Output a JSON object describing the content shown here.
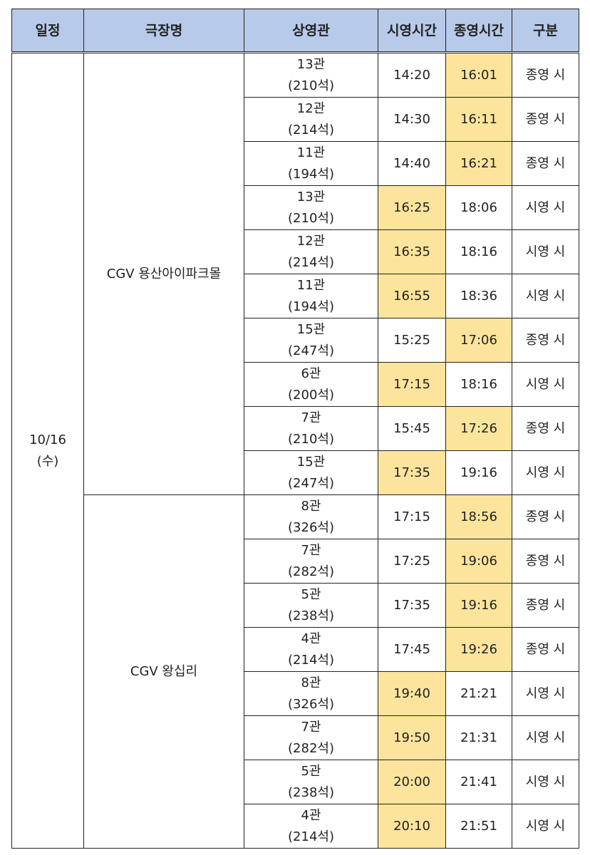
{
  "table": {
    "header": [
      "일정",
      "극장명",
      "상영관",
      "시영시간",
      "종영시간",
      "구분"
    ],
    "header_color": "#b8cae9",
    "highlight_color": "#fde49c",
    "date": "10/16\n(수)",
    "theaters": [
      {
        "name": "CGV 용산아이파크몰",
        "highlighted": [
          2,
          2,
          2,
          1,
          1,
          1,
          2,
          1,
          2,
          1
        ],
        "rows": [
          [
            "13관\n(210석)",
            "14:20",
            "16:01",
            "종영 시"
          ],
          [
            "12관\n(214석)",
            "14:30",
            "16:11",
            "종영 시"
          ],
          [
            "11관\n(194석)",
            "14:40",
            "16:21",
            "종영 시"
          ],
          [
            "13관\n(210석)",
            "16:25",
            "18:06",
            "시영 시"
          ],
          [
            "12관\n(214석)",
            "16:35",
            "18:16",
            "시영 시"
          ],
          [
            "11관\n(194석)",
            "16:55",
            "18:36",
            "시영 시"
          ],
          [
            "15관\n(247석)",
            "15:25",
            "17:06",
            "종영 시"
          ],
          [
            "6관\n(200석)",
            "17:15",
            "18:16",
            "시영 시"
          ],
          [
            "7관\n(210석)",
            "15:45",
            "17:26",
            "종영 시"
          ],
          [
            "15관\n(247석)",
            "17:35",
            "19:16",
            "시영 시"
          ]
        ]
      },
      {
        "name": "CGV 왕십리",
        "highlighted": [
          2,
          2,
          2,
          2,
          1,
          1,
          1,
          1
        ],
        "rows": [
          [
            "8관\n(326석)",
            "17:15",
            "18:56",
            "종영 시"
          ],
          [
            "7관\n(282석)",
            "17:25",
            "19:06",
            "종영 시"
          ],
          [
            "5관\n(238석)",
            "17:35",
            "19:16",
            "종영 시"
          ],
          [
            "4관\n(214석)",
            "17:45",
            "19:26",
            "종영 시"
          ],
          [
            "8관\n(326석)",
            "19:40",
            "21:21",
            "시영 시"
          ],
          [
            "7관\n(282석)",
            "19:50",
            "21:31",
            "시영 시"
          ],
          [
            "5관\n(238석)",
            "20:00",
            "21:41",
            "시영 시"
          ],
          [
            "4관\n(214석)",
            "20:10",
            "21:51",
            "시영 시"
          ]
        ]
      }
    ]
  }
}
